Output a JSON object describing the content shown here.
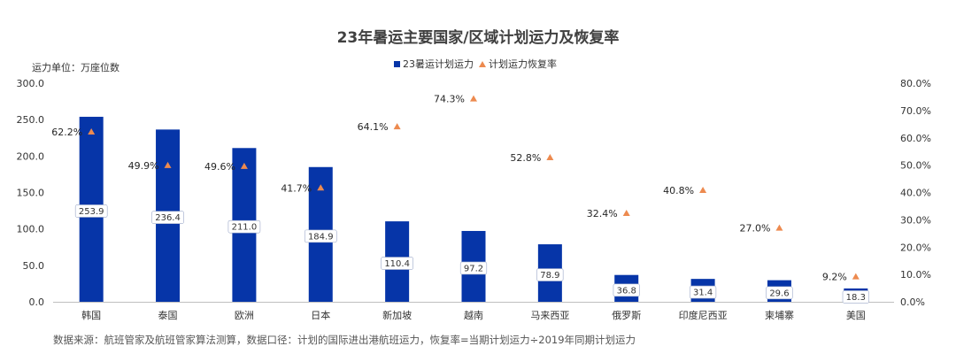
{
  "chart_data": {
    "type": "bar",
    "title": "23年暑运主要国家/区域计划运力及恢复率",
    "unit_label": "运力单位：万座位数",
    "categories": [
      "韩国",
      "泰国",
      "欧洲",
      "日本",
      "新加坡",
      "越南",
      "马来西亚",
      "俄罗斯",
      "印度尼西亚",
      "柬埔寨",
      "美国"
    ],
    "series": [
      {
        "name": "23暑运计划运力",
        "type": "bar",
        "axis": "left",
        "color": "#0635A8",
        "values": [
          253.9,
          236.4,
          211.0,
          184.9,
          110.4,
          97.2,
          78.9,
          36.8,
          31.4,
          29.6,
          18.3
        ],
        "labels": [
          "253.9",
          "236.4",
          "211.0",
          "184.9",
          "110.4",
          "97.2",
          "78.9",
          "36.8",
          "31.4",
          "29.6",
          "18.3"
        ]
      },
      {
        "name": "计划运力恢复率",
        "type": "scatter",
        "marker": "triangle",
        "axis": "right",
        "color": "#ED8A4F",
        "values": [
          62.2,
          49.9,
          49.6,
          41.7,
          64.1,
          74.3,
          52.8,
          32.4,
          40.8,
          27.0,
          9.2
        ],
        "labels": [
          "62.2%",
          "49.9%",
          "49.6%",
          "41.7%",
          "64.1%",
          "74.3%",
          "52.8%",
          "32.4%",
          "40.8%",
          "27.0%",
          "9.2%"
        ]
      }
    ],
    "y_left": {
      "range": [
        0,
        300
      ],
      "ticks": [
        "0.0",
        "50.0",
        "100.0",
        "150.0",
        "200.0",
        "250.0",
        "300.0"
      ]
    },
    "y_right": {
      "range": [
        0,
        80
      ],
      "ticks": [
        "0.0%",
        "10.0%",
        "20.0%",
        "30.0%",
        "40.0%",
        "50.0%",
        "60.0%",
        "70.0%",
        "80.0%"
      ]
    },
    "grid": false,
    "legend_position": "top-center"
  },
  "footnote": "数据来源：航班管家及航班管家算法测算，数据口径：计划的国际进出港航班运力，恢复率=当期计划运力÷2019年同期计划运力"
}
